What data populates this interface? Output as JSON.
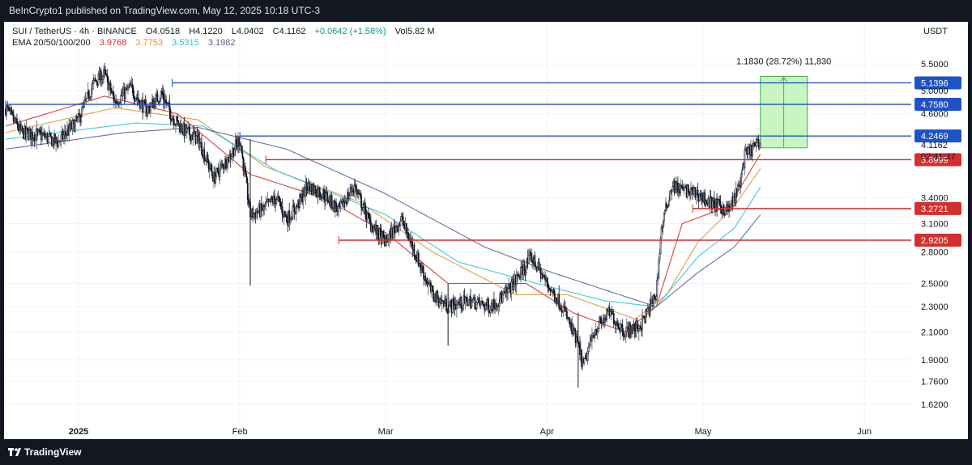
{
  "header": {
    "published": "BeInCrypto1 published on TradingView.com, May 12, 2025 10:18 UTC-3"
  },
  "legend": {
    "symbol": "SUI / TetherUS · 4h · BINANCE",
    "open": "O4.0518",
    "high": "H4.1220",
    "low": "L4.0402",
    "close": "C4.1162",
    "change": "+0.0642 (+1.58%)",
    "volume": "Vol5.82 M",
    "ema_label": "EMA 20/50/100/200",
    "ema_values": [
      "3.9768",
      "3.7753",
      "3.5315",
      "3.1982"
    ]
  },
  "currency": "USDT",
  "footer": {
    "brand": "TradingView"
  },
  "colors": {
    "up": "#089981",
    "down": "#131722",
    "support": "#d32f2f",
    "resistance": "#1e53c8",
    "ema20": "#d32f2f",
    "ema50": "#e0913a",
    "ema100": "#26c6da",
    "ema200": "#5a5f9a",
    "target": "#4caf50"
  },
  "chart_data": {
    "type": "candlestick",
    "interval": "4h",
    "y_scale": "log",
    "ylim": [
      1.55,
      5.9
    ],
    "xlim": [
      "2024-12-18",
      "2025-06-10"
    ],
    "y_ticks": [
      1.62,
      1.76,
      1.9,
      2.1,
      2.3,
      2.5,
      2.8,
      3.1,
      3.4,
      4.6,
      5.0,
      5.5
    ],
    "y_tick_labels": [
      "1.6200",
      "1.7600",
      "1.9000",
      "2.1000",
      "2.3000",
      "2.5000",
      "2.8000",
      "3.1000",
      "3.4000",
      "4.6000",
      "5.0000",
      "5.5000"
    ],
    "x_ticks": [
      {
        "date": "2025-01-01",
        "label": "2025",
        "bold": true
      },
      {
        "date": "2025-02-01",
        "label": "Feb",
        "bold": false
      },
      {
        "date": "2025-03-01",
        "label": "Mar",
        "bold": false
      },
      {
        "date": "2025-04-01",
        "label": "Apr",
        "bold": false
      },
      {
        "date": "2025-05-01",
        "label": "May",
        "bold": false
      },
      {
        "date": "2025-06-01",
        "label": "Jun",
        "bold": false
      }
    ],
    "close_path": [
      [
        "2024-12-18",
        4.7
      ],
      [
        "2024-12-21",
        4.3
      ],
      [
        "2024-12-25",
        4.25
      ],
      [
        "2024-12-28",
        4.15
      ],
      [
        "2025-01-01",
        4.5
      ],
      [
        "2025-01-04",
        5.15
      ],
      [
        "2025-01-06",
        5.3
      ],
      [
        "2025-01-08",
        4.8
      ],
      [
        "2025-01-11",
        5.05
      ],
      [
        "2025-01-14",
        4.65
      ],
      [
        "2025-01-17",
        4.95
      ],
      [
        "2025-01-19",
        4.55
      ],
      [
        "2025-01-21",
        4.35
      ],
      [
        "2025-01-24",
        4.2
      ],
      [
        "2025-01-27",
        3.65
      ],
      [
        "2025-01-30",
        3.95
      ],
      [
        "2025-02-01",
        4.2
      ],
      [
        "2025-02-03",
        3.2
      ],
      [
        "2025-02-05",
        3.25
      ],
      [
        "2025-02-08",
        3.4
      ],
      [
        "2025-02-10",
        3.15
      ],
      [
        "2025-02-12",
        3.3
      ],
      [
        "2025-02-14",
        3.55
      ],
      [
        "2025-02-17",
        3.45
      ],
      [
        "2025-02-20",
        3.25
      ],
      [
        "2025-02-23",
        3.55
      ],
      [
        "2025-02-26",
        3.1
      ],
      [
        "2025-03-01",
        2.9
      ],
      [
        "2025-03-04",
        3.15
      ],
      [
        "2025-03-07",
        2.75
      ],
      [
        "2025-03-10",
        2.4
      ],
      [
        "2025-03-13",
        2.3
      ],
      [
        "2025-03-17",
        2.35
      ],
      [
        "2025-03-21",
        2.3
      ],
      [
        "2025-03-24",
        2.4
      ],
      [
        "2025-03-27",
        2.6
      ],
      [
        "2025-03-29",
        2.75
      ],
      [
        "2025-04-01",
        2.5
      ],
      [
        "2025-04-04",
        2.3
      ],
      [
        "2025-04-07",
        2.0
      ],
      [
        "2025-04-08",
        1.85
      ],
      [
        "2025-04-10",
        2.1
      ],
      [
        "2025-04-13",
        2.25
      ],
      [
        "2025-04-16",
        2.1
      ],
      [
        "2025-04-19",
        2.15
      ],
      [
        "2025-04-22",
        2.4
      ],
      [
        "2025-04-23",
        3.05
      ],
      [
        "2025-04-25",
        3.55
      ],
      [
        "2025-04-27",
        3.5
      ],
      [
        "2025-04-30",
        3.45
      ],
      [
        "2025-05-02",
        3.35
      ],
      [
        "2025-05-04",
        3.3
      ],
      [
        "2025-05-06",
        3.25
      ],
      [
        "2025-05-08",
        3.55
      ],
      [
        "2025-05-09",
        3.95
      ],
      [
        "2025-05-11",
        4.1
      ],
      [
        "2025-05-12",
        4.1162
      ]
    ],
    "ema_paths": [
      {
        "name": "EMA 20",
        "points": [
          [
            "2024-12-18",
            4.4
          ],
          [
            "2025-01-06",
            4.9
          ],
          [
            "2025-01-20",
            4.6
          ],
          [
            "2025-02-03",
            3.7
          ],
          [
            "2025-02-17",
            3.4
          ],
          [
            "2025-03-01",
            3.0
          ],
          [
            "2025-03-13",
            2.5
          ],
          [
            "2025-03-28",
            2.5
          ],
          [
            "2025-04-06",
            2.25
          ],
          [
            "2025-04-16",
            2.1
          ],
          [
            "2025-04-22",
            2.3
          ],
          [
            "2025-04-27",
            3.1
          ],
          [
            "2025-05-06",
            3.3
          ],
          [
            "2025-05-12",
            3.9768
          ]
        ]
      },
      {
        "name": "EMA 50",
        "points": [
          [
            "2024-12-18",
            4.3
          ],
          [
            "2025-01-08",
            4.7
          ],
          [
            "2025-01-24",
            4.5
          ],
          [
            "2025-02-06",
            3.8
          ],
          [
            "2025-02-24",
            3.35
          ],
          [
            "2025-03-10",
            2.8
          ],
          [
            "2025-03-26",
            2.4
          ],
          [
            "2025-04-05",
            2.4
          ],
          [
            "2025-04-18",
            2.2
          ],
          [
            "2025-04-24",
            2.4
          ],
          [
            "2025-04-30",
            2.9
          ],
          [
            "2025-05-07",
            3.3
          ],
          [
            "2025-05-12",
            3.7753
          ]
        ]
      },
      {
        "name": "EMA 100",
        "points": [
          [
            "2024-12-18",
            4.2
          ],
          [
            "2025-01-12",
            4.45
          ],
          [
            "2025-01-25",
            4.4
          ],
          [
            "2025-02-08",
            3.75
          ],
          [
            "2025-03-01",
            3.2
          ],
          [
            "2025-03-15",
            2.7
          ],
          [
            "2025-03-30",
            2.5
          ],
          [
            "2025-04-12",
            2.35
          ],
          [
            "2025-04-22",
            2.3
          ],
          [
            "2025-04-30",
            2.75
          ],
          [
            "2025-05-07",
            3.05
          ],
          [
            "2025-05-12",
            3.5315
          ]
        ]
      },
      {
        "name": "EMA 200",
        "points": [
          [
            "2024-12-18",
            4.05
          ],
          [
            "2025-01-10",
            4.3
          ],
          [
            "2025-01-24",
            4.38
          ],
          [
            "2025-02-10",
            4.05
          ],
          [
            "2025-03-01",
            3.45
          ],
          [
            "2025-03-20",
            2.85
          ],
          [
            "2025-04-02",
            2.6
          ],
          [
            "2025-04-15",
            2.4
          ],
          [
            "2025-04-22",
            2.3
          ],
          [
            "2025-04-30",
            2.6
          ],
          [
            "2025-05-07",
            2.85
          ],
          [
            "2025-05-12",
            3.1982
          ]
        ]
      }
    ],
    "levels": [
      {
        "price": 5.1396,
        "label": "5.1396",
        "kind": "resistance",
        "start": "2025-01-19"
      },
      {
        "price": 4.758,
        "label": "4.7580",
        "kind": "resistance",
        "start": "2024-12-18"
      },
      {
        "price": 4.2469,
        "label": "4.2469",
        "kind": "resistance",
        "start": "2025-02-01"
      },
      {
        "price": 3.8999,
        "label": "3.8999",
        "kind": "support",
        "start": "2025-02-06"
      },
      {
        "price": 3.2721,
        "label": "3.2721",
        "kind": "support",
        "start": "2025-04-29"
      },
      {
        "price": 2.9205,
        "label": "2.9205",
        "kind": "support",
        "start": "2025-02-20"
      }
    ],
    "current_price": {
      "label": "4.1162",
      "timer": "02:41:27"
    },
    "projection": {
      "from": 4.07,
      "to": 5.26,
      "x_start": "2025-05-12",
      "x_end": "2025-05-21",
      "label": "1.1830 (28.72%) 11,830"
    }
  }
}
